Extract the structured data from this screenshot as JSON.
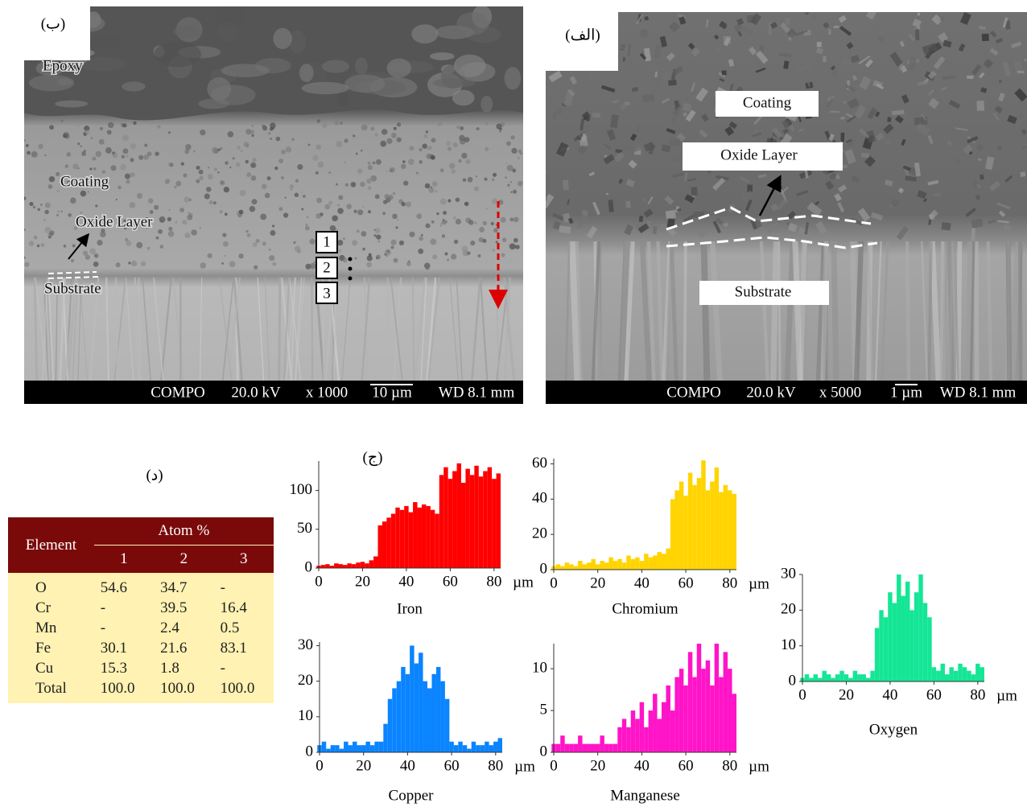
{
  "panel_labels": [
    "(الف)",
    "(ب)",
    "(ج)",
    "(د)"
  ],
  "sem_images": [
    {
      "annotations": [
        "Epoxy",
        "Coating",
        "Oxide Layer",
        "Substrate"
      ],
      "points": [
        "1",
        "2",
        "3"
      ],
      "info": [
        "COMPO",
        "20.0 kV",
        "x 1000",
        "10 µm",
        "WD 8.1 mm"
      ]
    },
    {
      "annotations": [
        "Coating",
        "Oxide Layer",
        "Substrate"
      ],
      "info": [
        "COMPO",
        "20.0 kV",
        "x 5000",
        "1 µm",
        "WD 8.1 mm"
      ]
    }
  ],
  "table": {
    "header": [
      "Element",
      "Atom %"
    ],
    "columns": [
      "1",
      "2",
      "3"
    ],
    "rows": [
      [
        "O",
        "54.6",
        "34.7",
        "-"
      ],
      [
        "Cr",
        "-",
        "39.5",
        "16.4"
      ],
      [
        "Mn",
        "-",
        "2.4",
        "0.5"
      ],
      [
        "Fe",
        "30.1",
        "21.6",
        "83.1"
      ],
      [
        "Cu",
        "15.3",
        "1.8",
        "-"
      ],
      [
        "Total",
        "100.0",
        "100.0",
        "100.0"
      ]
    ]
  },
  "chart_data": [
    {
      "type": "bar",
      "title": "Iron",
      "xlabel": "µm",
      "color": "#ff0000",
      "xlim": [
        0,
        83
      ],
      "ylim": [
        0,
        138
      ],
      "xticks": [
        0,
        20,
        40,
        60,
        80
      ],
      "yticks": [
        0,
        50,
        100
      ],
      "x": [
        0,
        2,
        4,
        6,
        8,
        10,
        12,
        14,
        16,
        18,
        20,
        22,
        24,
        26,
        28,
        30,
        32,
        34,
        36,
        38,
        40,
        42,
        44,
        46,
        48,
        50,
        52,
        54,
        56,
        58,
        60,
        62,
        64,
        66,
        68,
        70,
        72,
        74,
        76,
        78,
        80,
        82
      ],
      "values": [
        3,
        4,
        5,
        3,
        6,
        5,
        4,
        6,
        5,
        7,
        8,
        6,
        10,
        15,
        55,
        60,
        65,
        70,
        78,
        75,
        80,
        72,
        85,
        78,
        82,
        80,
        75,
        70,
        120,
        130,
        115,
        125,
        135,
        110,
        128,
        120,
        132,
        118,
        125,
        130,
        115,
        122
      ]
    },
    {
      "type": "bar",
      "title": "Chromium",
      "xlabel": "µm",
      "color": "#ffd400",
      "xlim": [
        0,
        83
      ],
      "ylim": [
        0,
        63
      ],
      "xticks": [
        0,
        20,
        40,
        60,
        80
      ],
      "yticks": [
        0,
        20,
        40,
        60
      ],
      "x": [
        0,
        2,
        4,
        6,
        8,
        10,
        12,
        14,
        16,
        18,
        20,
        22,
        24,
        26,
        28,
        30,
        32,
        34,
        36,
        38,
        40,
        42,
        44,
        46,
        48,
        50,
        52,
        54,
        56,
        58,
        60,
        62,
        64,
        66,
        68,
        70,
        72,
        74,
        76,
        78,
        80,
        82
      ],
      "values": [
        2,
        3,
        2,
        4,
        3,
        2,
        5,
        3,
        4,
        6,
        3,
        5,
        4,
        7,
        5,
        6,
        4,
        8,
        6,
        7,
        5,
        9,
        7,
        8,
        10,
        9,
        12,
        40,
        45,
        50,
        42,
        55,
        48,
        52,
        62,
        45,
        50,
        58,
        44,
        48,
        45,
        43
      ]
    },
    {
      "type": "bar",
      "title": "Copper",
      "xlabel": "µm",
      "color": "#0a84ff",
      "xlim": [
        0,
        83
      ],
      "ylim": [
        0,
        31
      ],
      "xticks": [
        0,
        20,
        40,
        60,
        80
      ],
      "yticks": [
        0,
        10,
        20,
        30
      ],
      "x": [
        0,
        2,
        4,
        6,
        8,
        10,
        12,
        14,
        16,
        18,
        20,
        22,
        24,
        26,
        28,
        30,
        32,
        34,
        36,
        38,
        40,
        42,
        44,
        46,
        48,
        50,
        52,
        54,
        56,
        58,
        60,
        62,
        64,
        66,
        68,
        70,
        72,
        74,
        76,
        78,
        80,
        82
      ],
      "values": [
        2,
        3,
        1,
        2,
        2,
        1,
        3,
        2,
        3,
        2,
        2,
        3,
        2,
        3,
        3,
        8,
        15,
        18,
        20,
        24,
        22,
        30,
        25,
        28,
        20,
        18,
        22,
        24,
        20,
        15,
        3,
        2,
        3,
        2,
        1,
        3,
        2,
        2,
        3,
        2,
        3,
        4
      ]
    },
    {
      "type": "bar",
      "title": "Manganese",
      "xlabel": "µm",
      "color": "#ff14c8",
      "xlim": [
        0,
        83
      ],
      "ylim": [
        0,
        13
      ],
      "xticks": [
        0,
        20,
        40,
        60,
        80
      ],
      "yticks": [
        0,
        5,
        10
      ],
      "x": [
        0,
        2,
        4,
        6,
        8,
        10,
        12,
        14,
        16,
        18,
        20,
        22,
        24,
        26,
        28,
        30,
        32,
        34,
        36,
        38,
        40,
        42,
        44,
        46,
        48,
        50,
        52,
        54,
        56,
        58,
        60,
        62,
        64,
        66,
        68,
        70,
        72,
        74,
        76,
        78,
        80,
        82
      ],
      "values": [
        1,
        1,
        2,
        1,
        1,
        1,
        2,
        1,
        1,
        1,
        1,
        2,
        1,
        1,
        1,
        3,
        4,
        3,
        5,
        4,
        6,
        3,
        5,
        7,
        4,
        6,
        8,
        5,
        9,
        10,
        8,
        12,
        9,
        13,
        10,
        11,
        8,
        13,
        9,
        12,
        10,
        7
      ]
    },
    {
      "type": "bar",
      "title": "Oxygen",
      "xlabel": "µm",
      "color": "#14e695",
      "xlim": [
        0,
        83
      ],
      "ylim": [
        0,
        30
      ],
      "xticks": [
        0,
        20,
        40,
        60,
        80
      ],
      "yticks": [
        0,
        10,
        20,
        30
      ],
      "x": [
        0,
        2,
        4,
        6,
        8,
        10,
        12,
        14,
        16,
        18,
        20,
        22,
        24,
        26,
        28,
        30,
        32,
        34,
        36,
        38,
        40,
        42,
        44,
        46,
        48,
        50,
        52,
        54,
        56,
        58,
        60,
        62,
        64,
        66,
        68,
        70,
        72,
        74,
        76,
        78,
        80,
        82
      ],
      "values": [
        1,
        2,
        1,
        2,
        1,
        3,
        2,
        1,
        2,
        3,
        2,
        1,
        3,
        2,
        2,
        1,
        3,
        15,
        20,
        18,
        25,
        22,
        30,
        24,
        28,
        20,
        25,
        30,
        22,
        18,
        4,
        3,
        5,
        2,
        4,
        3,
        5,
        4,
        3,
        2,
        5,
        4
      ]
    }
  ]
}
